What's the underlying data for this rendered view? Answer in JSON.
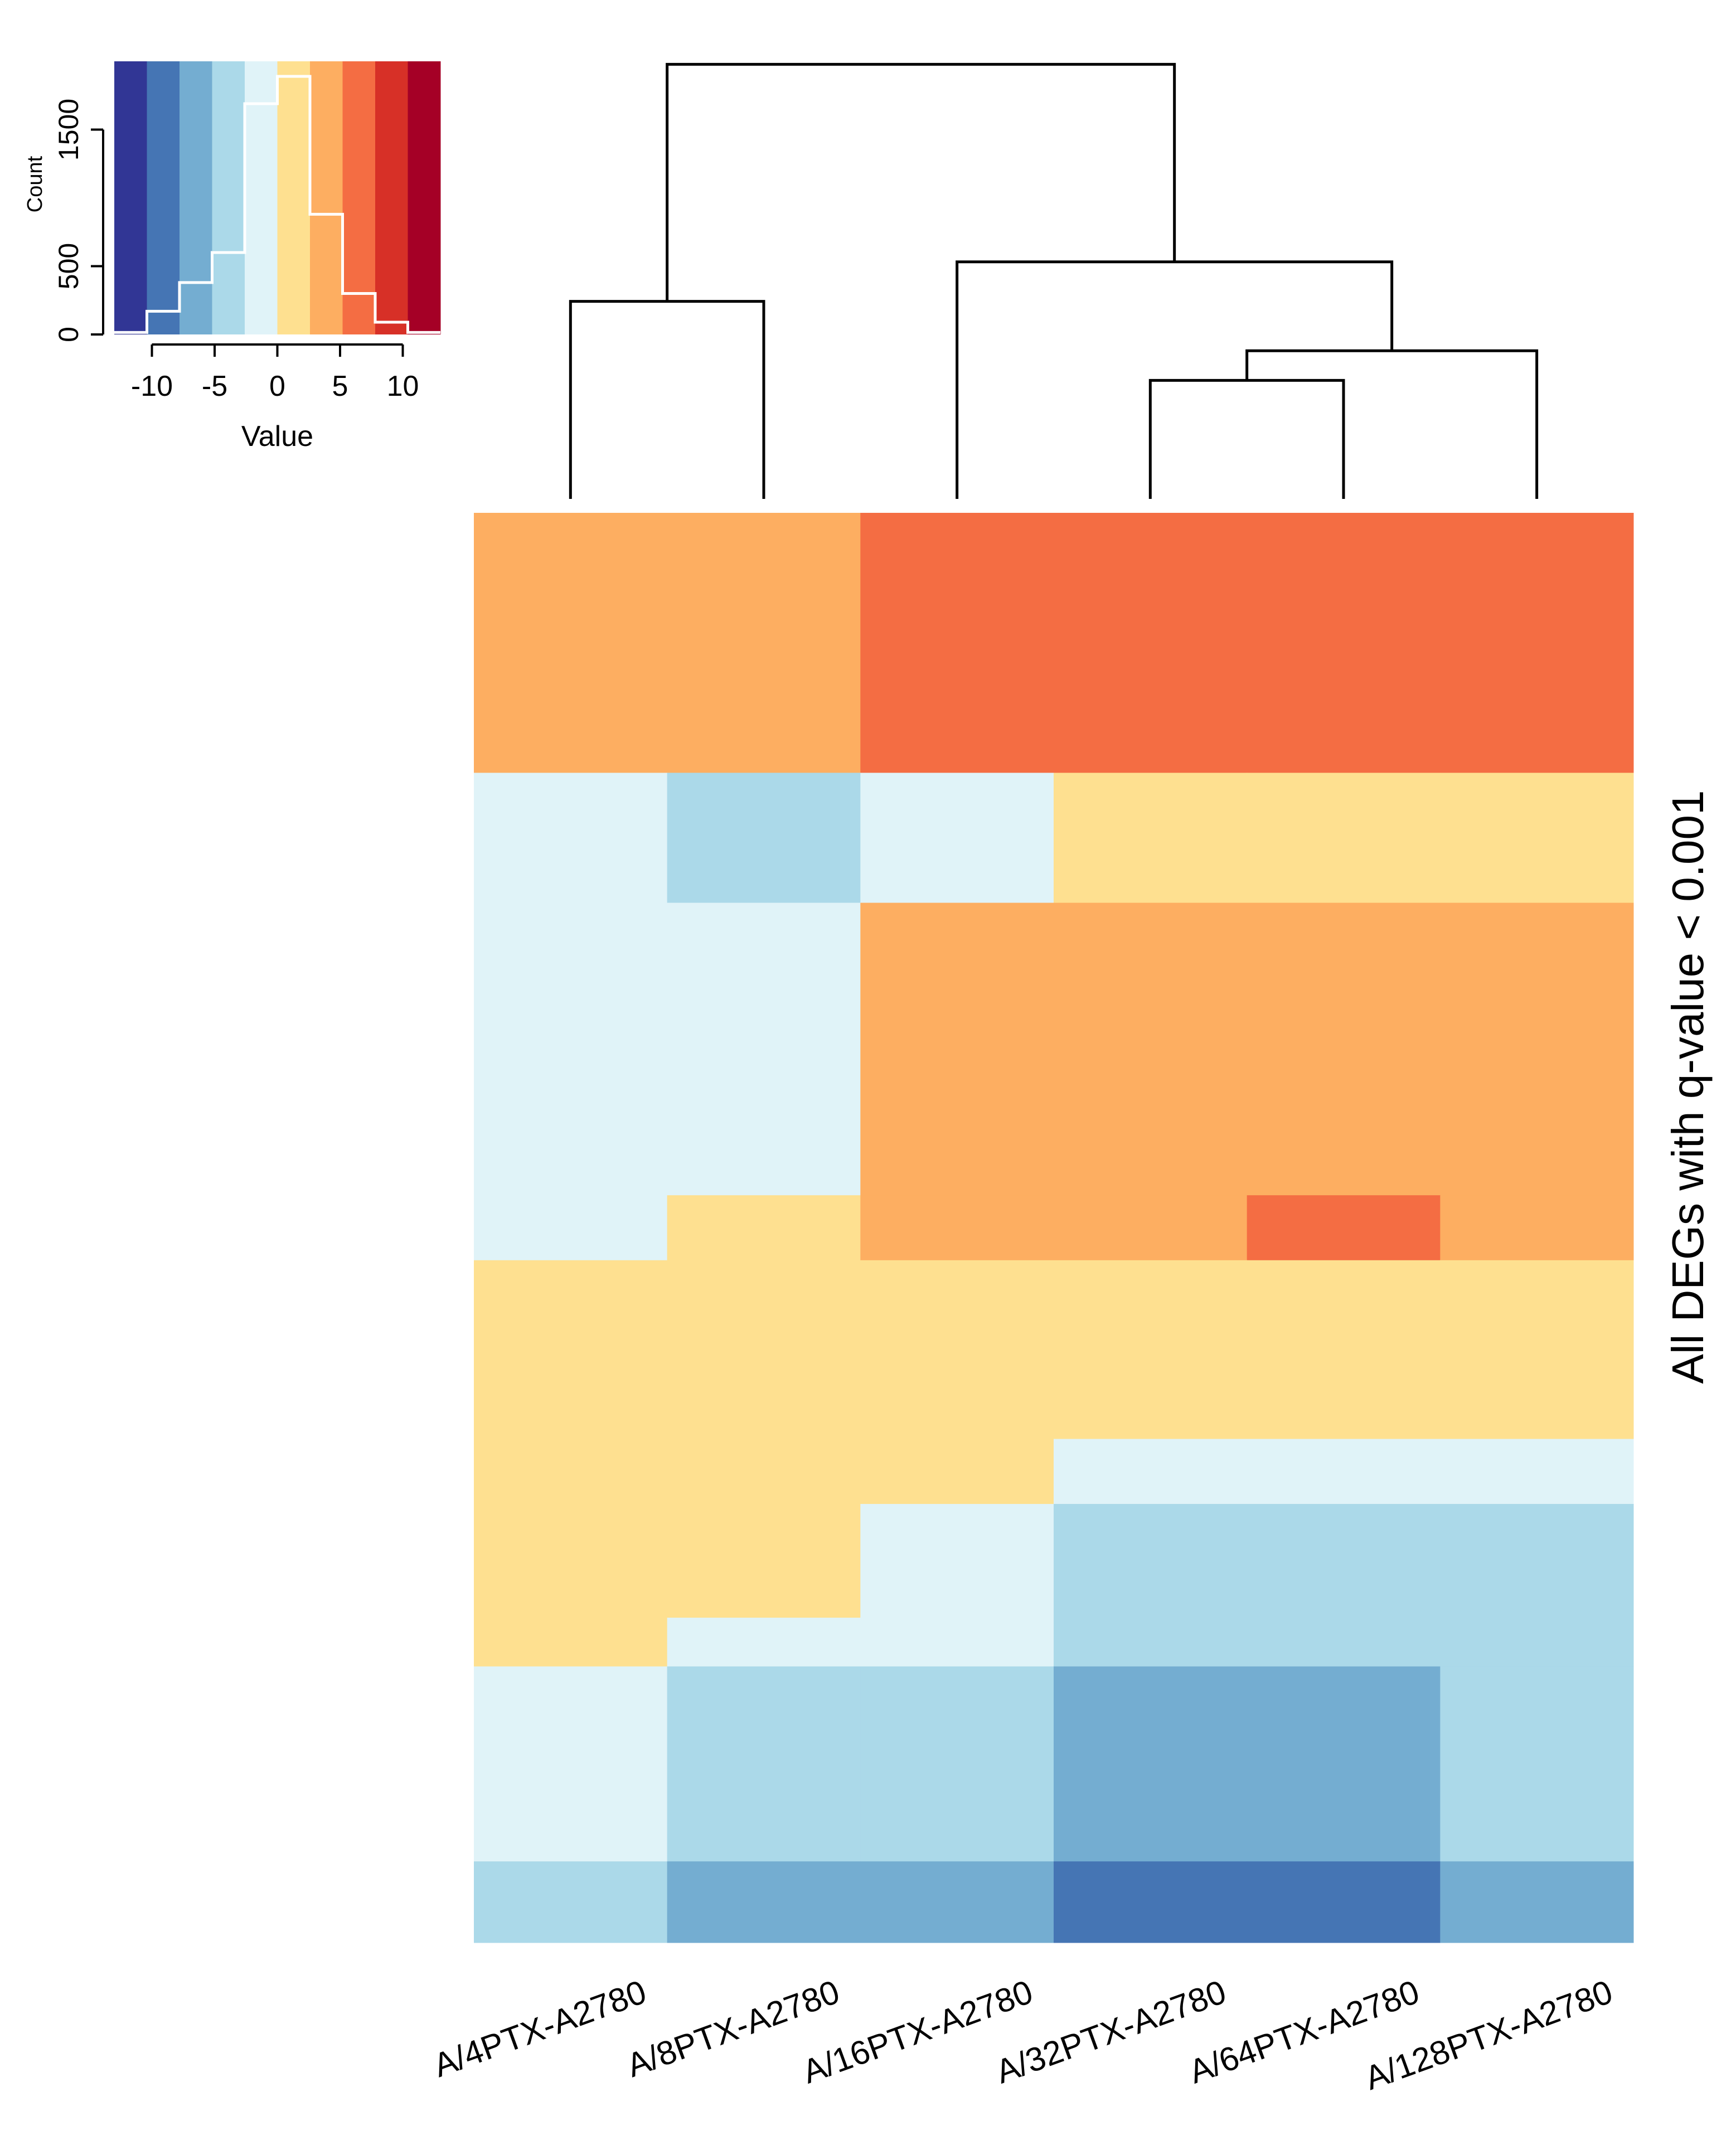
{
  "chart_data": [
    {
      "type": "heatmap",
      "title": "",
      "ylabel": "All DEGs with q-value < 0.001",
      "columns": [
        "A/4PTX-A2780",
        "A/8PTX-A2780",
        "A/16PTX-A2780",
        "A/32PTX-A2780",
        "A/64PTX-A2780",
        "A/128PTX-A2780"
      ],
      "palette": [
        "#313695",
        "#4575b4",
        "#74add1",
        "#abd9e9",
        "#e0f3f8",
        "#fee090",
        "#fdae61",
        "#f46d43",
        "#d73027",
        "#a50026"
      ],
      "value_range": [
        -12,
        12
      ],
      "row_blocks": [
        {
          "rows": 80,
          "values": [
            3,
            3,
            5,
            5,
            5,
            5
          ]
        },
        {
          "rows": 40,
          "values": [
            -2,
            -3,
            -2,
            2,
            2,
            2
          ]
        },
        {
          "rows": 90,
          "values": [
            -2,
            -2,
            3,
            3,
            4,
            4
          ]
        },
        {
          "rows": 20,
          "values": [
            -2,
            2,
            4,
            4,
            5,
            4
          ]
        },
        {
          "rows": 55,
          "values": [
            1,
            0,
            2,
            1,
            1,
            1
          ]
        },
        {
          "rows": 20,
          "values": [
            2,
            2,
            2,
            -2,
            -2,
            -2
          ]
        },
        {
          "rows": 35,
          "values": [
            2,
            2,
            -2,
            -3,
            -3,
            -3
          ]
        },
        {
          "rows": 15,
          "values": [
            2,
            -2,
            -2,
            -3,
            -3,
            -3
          ]
        },
        {
          "rows": 60,
          "values": [
            -2,
            -3,
            -3,
            -5,
            -6,
            -4
          ]
        },
        {
          "rows": 25,
          "values": [
            -3,
            -6,
            -5,
            -8,
            -9,
            -6
          ]
        }
      ],
      "dendrogram": {
        "leaf_order": [
          0,
          1,
          2,
          3,
          4,
          5
        ],
        "merges": [
          {
            "left": 3,
            "right": 4,
            "height": 1.2
          },
          {
            "left": 5,
            "right": "m0",
            "height": 1.5
          },
          {
            "left": 2,
            "right": "m1",
            "height": 2.4
          },
          {
            "left": 0,
            "right": 1,
            "height": 2.0
          },
          {
            "left": "m3",
            "right": "m2",
            "height": 4.4
          }
        ],
        "max_height": 4.6
      }
    },
    {
      "type": "histogram",
      "title": "",
      "xlabel": "Value",
      "ylabel": "Count",
      "x_ticks": [
        -10,
        -5,
        0,
        5,
        10
      ],
      "y_ticks": [
        0,
        500,
        1500
      ],
      "xlim": [
        -13,
        13
      ],
      "ylim": [
        0,
        2000
      ],
      "bins": [
        {
          "from": -13,
          "to": -10.4,
          "count": 15
        },
        {
          "from": -10.4,
          "to": -7.8,
          "count": 170
        },
        {
          "from": -7.8,
          "to": -5.2,
          "count": 380
        },
        {
          "from": -5.2,
          "to": -2.6,
          "count": 600
        },
        {
          "from": -2.6,
          "to": 0,
          "count": 1690
        },
        {
          "from": 0,
          "to": 2.6,
          "count": 1890
        },
        {
          "from": 2.6,
          "to": 5.2,
          "count": 880
        },
        {
          "from": 5.2,
          "to": 7.8,
          "count": 300
        },
        {
          "from": 7.8,
          "to": 10.4,
          "count": 90
        },
        {
          "from": 10.4,
          "to": 13,
          "count": 15
        }
      ]
    }
  ]
}
